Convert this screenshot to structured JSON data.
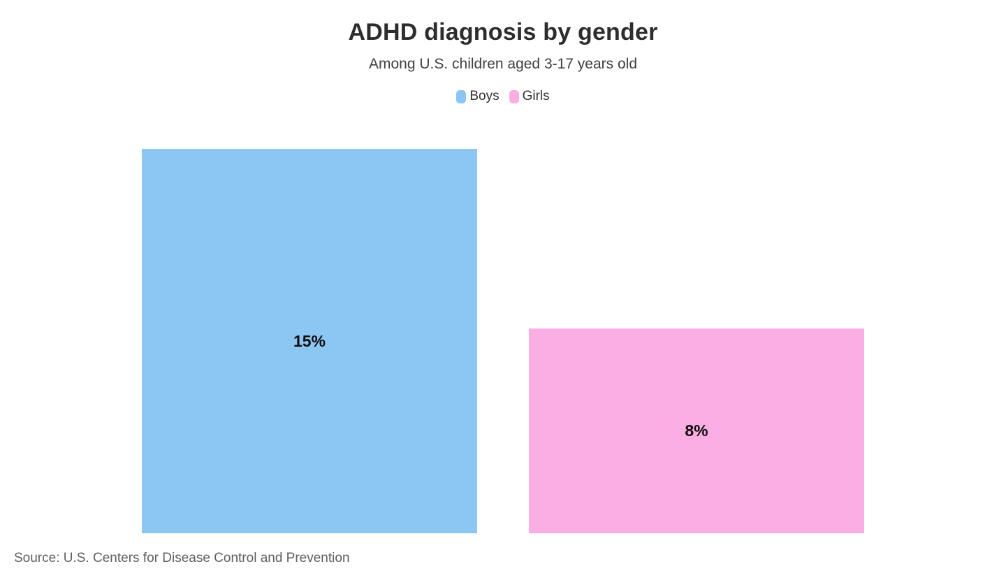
{
  "header": {
    "title": "ADHD diagnosis by gender",
    "subtitle": "Among U.S. children aged 3-17 years old"
  },
  "legend": {
    "position": "top-center",
    "items": [
      {
        "label": "Boys",
        "color": "#8CC6F3"
      },
      {
        "label": "Girls",
        "color": "#FBAEE4"
      }
    ]
  },
  "chart_data": {
    "type": "bar",
    "title": "ADHD diagnosis by gender",
    "subtitle": "Among U.S. children aged 3-17 years old",
    "categories": [
      "Boys",
      "Girls"
    ],
    "values": [
      15,
      8
    ],
    "value_labels": [
      "15%",
      "8%"
    ],
    "colors": [
      "#8CC6F3",
      "#FBAEE4"
    ],
    "unit": "%",
    "ylim": [
      0,
      15
    ],
    "grid": false,
    "axes_visible": false,
    "legend_position": "top",
    "value_label_position": "inside-center"
  },
  "footer": {
    "source": "Source: U.S. Centers for Disease Control and Prevention"
  }
}
